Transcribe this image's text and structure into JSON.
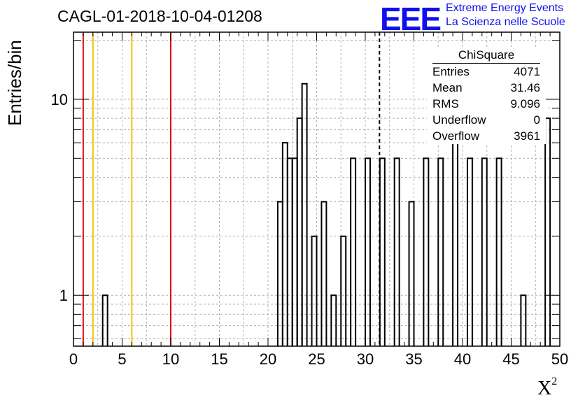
{
  "title": "CAGL-01-2018-10-04-01208",
  "logo": {
    "mark": "EEE",
    "line1": "Extreme Energy Events",
    "line2": "La Scienza nelle Scuole"
  },
  "stats_box": {
    "title": "ChiSquare",
    "rows": [
      {
        "label": "Entries",
        "value": "4071"
      },
      {
        "label": "Mean",
        "value": "31.46"
      },
      {
        "label": "RMS",
        "value": "9.096"
      },
      {
        "label": "Underflow",
        "value": "0"
      },
      {
        "label": "Overflow",
        "value": "3961"
      }
    ]
  },
  "colors": {
    "red_line": "#e01010",
    "yellow_line": "#f2c400",
    "bar_outline": "#000000",
    "grid": "#b0b0b0"
  },
  "chart_data": {
    "type": "bar",
    "xlabel": "X",
    "xlabel_superscript": "2",
    "ylabel": "Entries/bin",
    "xlim": [
      0,
      50
    ],
    "ylim": [
      0.55,
      22
    ],
    "yscale": "log",
    "grid": true,
    "bin_width": 0.5,
    "x_ticks": [
      "0",
      "5",
      "10",
      "15",
      "20",
      "25",
      "30",
      "35",
      "40",
      "45",
      "50"
    ],
    "y_ticks": [
      "1",
      "10"
    ],
    "bins": [
      {
        "x": 3.0,
        "value": 1
      },
      {
        "x": 21.0,
        "value": 3
      },
      {
        "x": 21.5,
        "value": 6
      },
      {
        "x": 22.0,
        "value": 5
      },
      {
        "x": 22.5,
        "value": 5
      },
      {
        "x": 23.0,
        "value": 8
      },
      {
        "x": 23.5,
        "value": 12
      },
      {
        "x": 24.5,
        "value": 2
      },
      {
        "x": 25.5,
        "value": 3
      },
      {
        "x": 26.5,
        "value": 1
      },
      {
        "x": 27.5,
        "value": 2
      },
      {
        "x": 28.5,
        "value": 5
      },
      {
        "x": 30.0,
        "value": 5
      },
      {
        "x": 31.5,
        "value": 5
      },
      {
        "x": 33.0,
        "value": 5
      },
      {
        "x": 34.5,
        "value": 3
      },
      {
        "x": 36.0,
        "value": 5
      },
      {
        "x": 37.5,
        "value": 5
      },
      {
        "x": 39.0,
        "value": 7
      },
      {
        "x": 40.5,
        "value": 5
      },
      {
        "x": 42.0,
        "value": 5
      },
      {
        "x": 43.5,
        "value": 5
      },
      {
        "x": 46.0,
        "value": 1
      },
      {
        "x": 48.5,
        "value": 8
      }
    ],
    "vertical_lines": [
      {
        "x": 1,
        "color": "red"
      },
      {
        "x": 2,
        "color": "yellow"
      },
      {
        "x": 6,
        "color": "yellow"
      },
      {
        "x": 10,
        "color": "red"
      },
      {
        "x": 31.46,
        "color": "black-dashed"
      }
    ]
  }
}
